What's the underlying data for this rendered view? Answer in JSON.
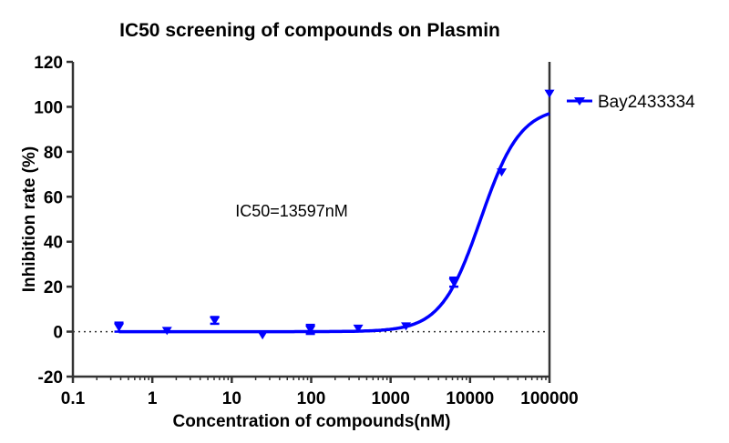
{
  "chart_data": {
    "type": "scatter",
    "title": "IC50 screening of compounds on Plasmin",
    "xlabel": "Concentration of compounds(nM)",
    "ylabel": "Inhibition rate (%)",
    "xscale": "log",
    "xlim": [
      0.1,
      100000
    ],
    "ylim": [
      -20,
      120
    ],
    "xticks": [
      "0.1",
      "1",
      "10",
      "100",
      "1000",
      "10000",
      "100000"
    ],
    "yticks": [
      "-20",
      "0",
      "20",
      "40",
      "60",
      "80",
      "100",
      "120"
    ],
    "grid": false,
    "legend_position": "right",
    "annotation": "IC50=13597nM",
    "color": "#0000ff",
    "series": [
      {
        "name": "Bay2433334",
        "marker": "triangle-down",
        "x": [
          0.38,
          1.53,
          6.1,
          24.4,
          97.7,
          390.6,
          1562.5,
          6250,
          25000,
          100000
        ],
        "y": [
          2,
          0.5,
          5,
          -1.5,
          1,
          1.5,
          2.5,
          22,
          71,
          106
        ],
        "error": [
          2,
          0,
          1.5,
          0,
          2,
          0,
          0,
          2,
          0,
          0
        ]
      }
    ],
    "fit": {
      "model": "four-parameter logistic",
      "bottom": 0,
      "top": 100,
      "ic50": 13597,
      "hill": 1.74
    },
    "reference_line": {
      "y": 0,
      "style": "dotted"
    }
  }
}
